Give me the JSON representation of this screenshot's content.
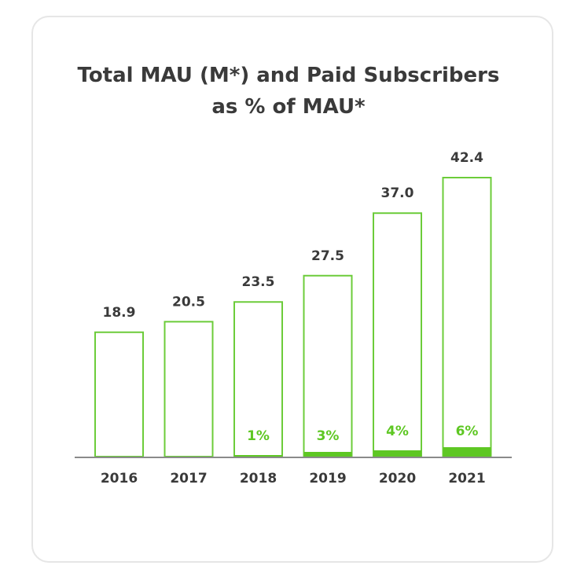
{
  "chart_data": {
    "type": "bar",
    "title": "Total MAU (M*) and Paid Subscribers as % of MAU*",
    "title_lines": [
      "Total MAU (M*) and Paid Subscribers",
      "as % of MAU*"
    ],
    "categories": [
      "2016",
      "2017",
      "2018",
      "2019",
      "2020",
      "2021"
    ],
    "series": [
      {
        "values": [
          18.9,
          20.5,
          23.5,
          27.5,
          37.0,
          42.4
        ],
        "value_labels": [
          "18.9",
          "20.5",
          "23.5",
          "27.5",
          "37.0",
          "42.4"
        ]
      },
      {
        "values": [
          0,
          0,
          1,
          3,
          4,
          6
        ],
        "value_labels": [
          "",
          "",
          "1%",
          "3%",
          "4%",
          "6%"
        ]
      }
    ],
    "ylim": [
      0,
      42.4
    ],
    "grid": false,
    "legend": "none"
  },
  "colors": {
    "accent": "#5ec723",
    "outline": "#6ccc3a",
    "text": "#3a3a3a",
    "baseline": "#8a8a8a",
    "card_border": "#e6e6e6"
  }
}
